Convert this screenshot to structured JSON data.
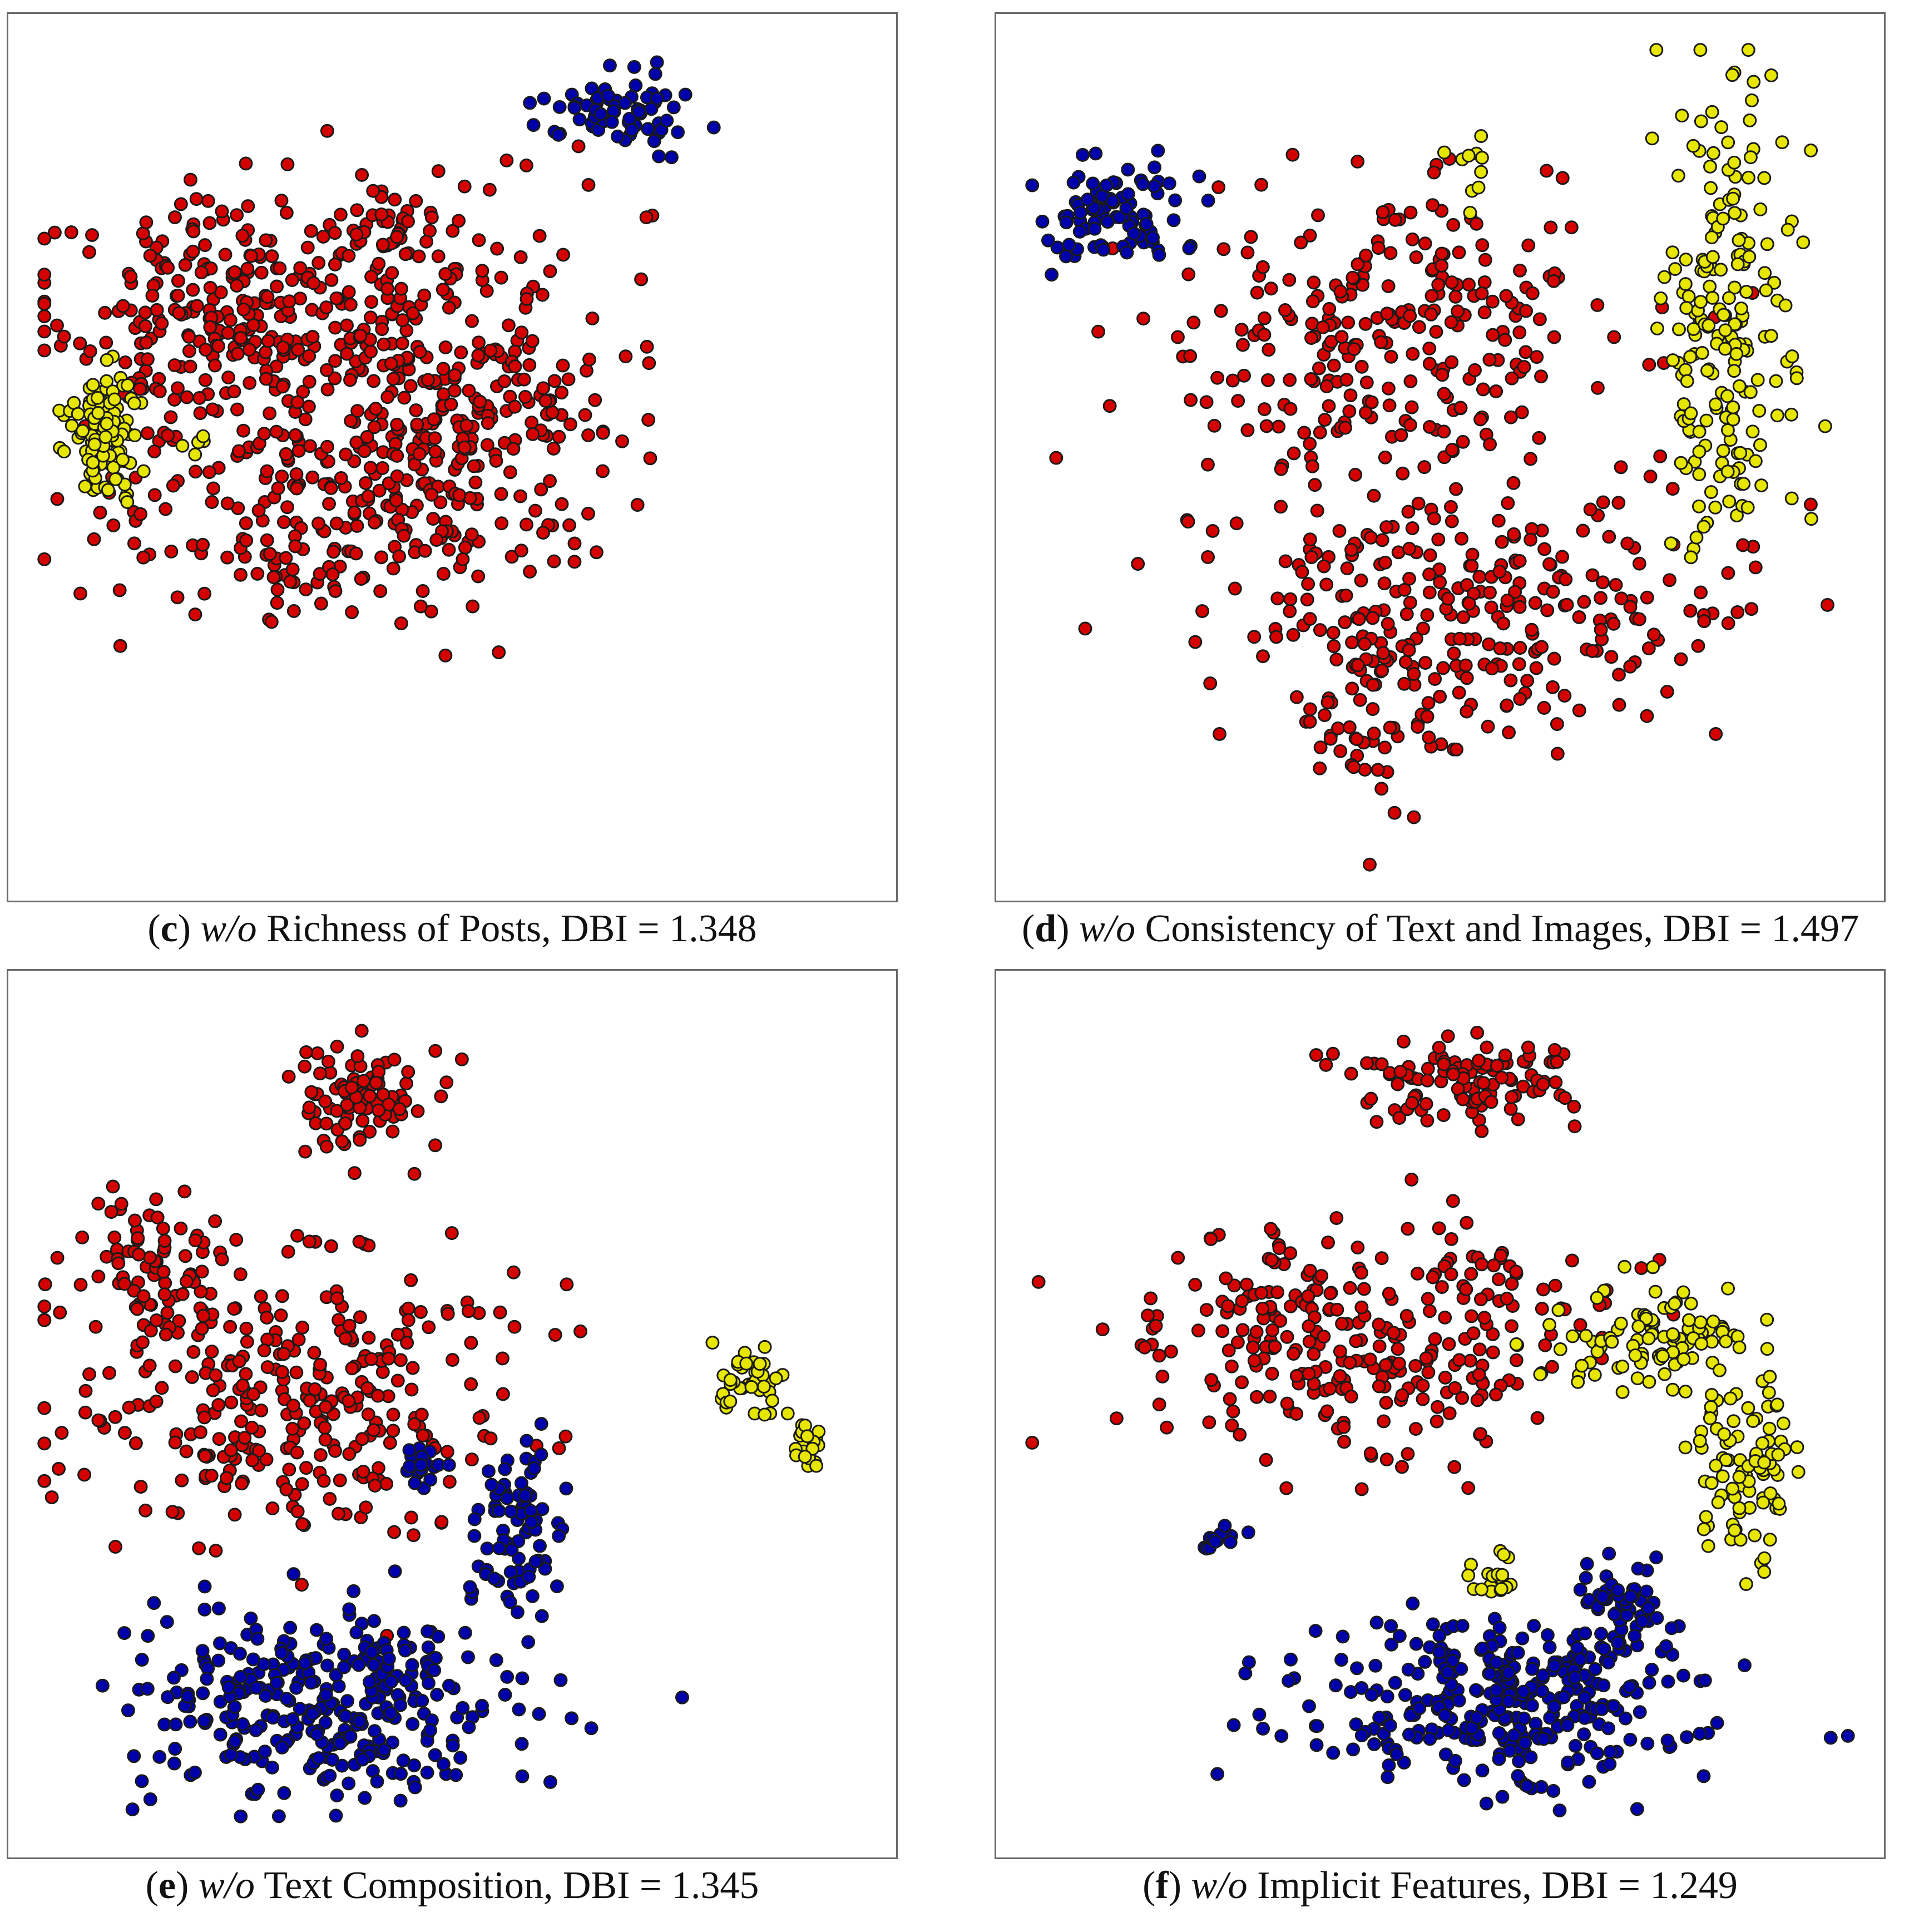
{
  "panels": [
    {
      "letter": "c",
      "prefix": "w/o",
      "title": "Richness of Posts, DBI = 1.348",
      "chart_data": {
        "type": "scatter",
        "title": "(c) w/o Richness of Posts, DBI = 1.348",
        "xlabel": "",
        "ylabel": "",
        "grid": false,
        "series": [
          {
            "color": "#d40000",
            "clusters": [
              [
                3.5,
                4.4,
                2.6,
                1.3,
                260
              ],
              [
                3.2,
                6.8,
                3.0,
                1.5,
                300
              ],
              [
                5.2,
                5.5,
                1.6,
                1.1,
                140
              ],
              [
                2.0,
                6.8,
                1.0,
                0.9,
                80
              ],
              [
                4.3,
                7.5,
                0.8,
                0.7,
                40
              ]
            ]
          },
          {
            "color": "#e6e600",
            "clusters": [
              [
                0.85,
                5.25,
                0.45,
                0.7,
                110
              ],
              [
                1.9,
                5.1,
                0.15,
                0.12,
                6
              ]
            ]
          },
          {
            "color": "#0000aa",
            "clusters": [
              [
                7.0,
                9.2,
                0.75,
                0.45,
                70
              ]
            ]
          }
        ],
        "xlim": [
          0,
          10
        ],
        "ylim": [
          0,
          10
        ]
      }
    },
    {
      "letter": "d",
      "prefix": "w/o",
      "title": "Consistency of Text and Images, DBI = 1.497",
      "chart_data": {
        "type": "scatter",
        "title": "(d) w/o Consistency of Text and Images, DBI = 1.497",
        "xlabel": "",
        "ylabel": "",
        "grid": false,
        "series": [
          {
            "color": "#d40000",
            "clusters": [
              [
                4.5,
                6.4,
                2.4,
                1.8,
                280
              ],
              [
                5.4,
                3.2,
                2.8,
                1.3,
                260
              ],
              [
                4.3,
                1.8,
                0.9,
                0.9,
                60
              ]
            ]
          },
          {
            "color": "#e6e600",
            "clusters": [
              [
                8.4,
                6.6,
                0.7,
                2.7,
                200
              ],
              [
                5.3,
                8.5,
                0.35,
                0.4,
                10
              ]
            ]
          },
          {
            "color": "#0000aa",
            "clusters": [
              [
                1.1,
                7.9,
                0.75,
                0.6,
                90
              ]
            ]
          }
        ],
        "xlim": [
          0,
          10
        ],
        "ylim": [
          0,
          10
        ]
      }
    },
    {
      "letter": "e",
      "prefix": "w/o",
      "title": "Text Composition, DBI = 1.345",
      "chart_data": {
        "type": "scatter",
        "title": "(e) w/o Text Composition, DBI = 1.345",
        "xlabel": "",
        "ylabel": "",
        "grid": false,
        "series": [
          {
            "color": "#d40000",
            "clusters": [
              [
                3.0,
                5.3,
                2.4,
                1.6,
                330
              ],
              [
                3.9,
                8.8,
                0.75,
                0.6,
                90
              ],
              [
                1.2,
                6.9,
                0.7,
                0.8,
                60
              ]
            ]
          },
          {
            "color": "#e6e600",
            "clusters": [
              [
                8.6,
                5.4,
                0.4,
                0.35,
                40
              ],
              [
                9.3,
                4.6,
                0.15,
                0.3,
                20
              ]
            ]
          },
          {
            "color": "#0000aa",
            "clusters": [
              [
                3.5,
                1.6,
                2.2,
                1.1,
                330
              ],
              [
                5.8,
                3.6,
                0.5,
                0.9,
                80
              ],
              [
                4.6,
                4.4,
                0.3,
                0.2,
                20
              ]
            ]
          }
        ],
        "xlim": [
          0,
          10
        ],
        "ylim": [
          0,
          10
        ]
      }
    },
    {
      "letter": "f",
      "prefix": "w/o",
      "title": "Implicit Features, DBI = 1.249",
      "chart_data": {
        "type": "scatter",
        "title": "(f) w/o Implicit Features, DBI = 1.249",
        "xlabel": "",
        "ylabel": "",
        "grid": false,
        "series": [
          {
            "color": "#d40000",
            "clusters": [
              [
                4.2,
                6.0,
                2.5,
                1.3,
                300
              ],
              [
                5.3,
                9.0,
                1.3,
                0.5,
                110
              ]
            ]
          },
          {
            "color": "#e6e600",
            "clusters": [
              [
                7.7,
                5.9,
                1.1,
                0.6,
                100
              ],
              [
                8.7,
                4.3,
                0.6,
                0.9,
                90
              ],
              [
                5.7,
                3.0,
                0.3,
                0.25,
                20
              ]
            ]
          },
          {
            "color": "#0000aa",
            "clusters": [
              [
                5.8,
                1.5,
                2.2,
                1.0,
                330
              ],
              [
                7.2,
                2.7,
                0.5,
                0.5,
                50
              ],
              [
                2.4,
                3.5,
                0.3,
                0.2,
                15
              ]
            ]
          }
        ],
        "xlim": [
          0,
          10
        ],
        "ylim": [
          0,
          10
        ]
      }
    }
  ]
}
